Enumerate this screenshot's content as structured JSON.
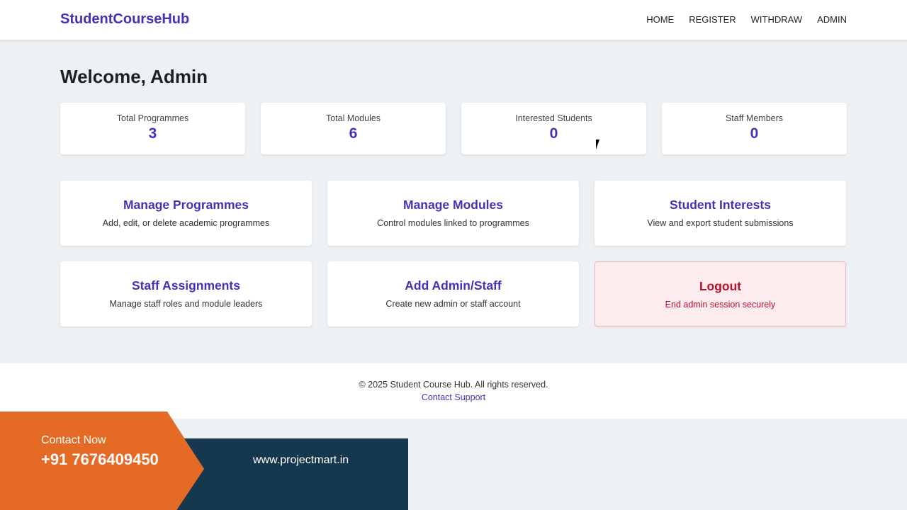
{
  "nav": {
    "brand": "StudentCourseHub",
    "links": [
      "HOME",
      "REGISTER",
      "WITHDRAW",
      "ADMIN"
    ]
  },
  "heading": "Welcome, Admin",
  "stats": [
    {
      "label": "Total Programmes",
      "value": "3"
    },
    {
      "label": "Total Modules",
      "value": "6"
    },
    {
      "label": "Interested Students",
      "value": "0"
    },
    {
      "label": "Staff Members",
      "value": "0"
    }
  ],
  "cards": [
    {
      "title": "Manage Programmes",
      "desc": "Add, edit, or delete academic programmes"
    },
    {
      "title": "Manage Modules",
      "desc": "Control modules linked to programmes"
    },
    {
      "title": "Student Interests",
      "desc": "View and export student submissions"
    },
    {
      "title": "Staff Assignments",
      "desc": "Manage staff roles and module leaders"
    },
    {
      "title": "Add Admin/Staff",
      "desc": "Create new admin or staff account"
    },
    {
      "title": "Logout",
      "desc": "End admin session securely"
    }
  ],
  "footer": {
    "copyright": "© 2025 Student Course Hub. All rights reserved.",
    "contact": "Contact Support"
  },
  "banner": {
    "contact_now": "Contact Now",
    "phone": "+91 7676409450",
    "website": "www.projectmart.in"
  },
  "colors": {
    "accent": "#4a2fb5",
    "danger": "#b5122c",
    "orange": "#e56a25",
    "navy": "#15384f"
  }
}
